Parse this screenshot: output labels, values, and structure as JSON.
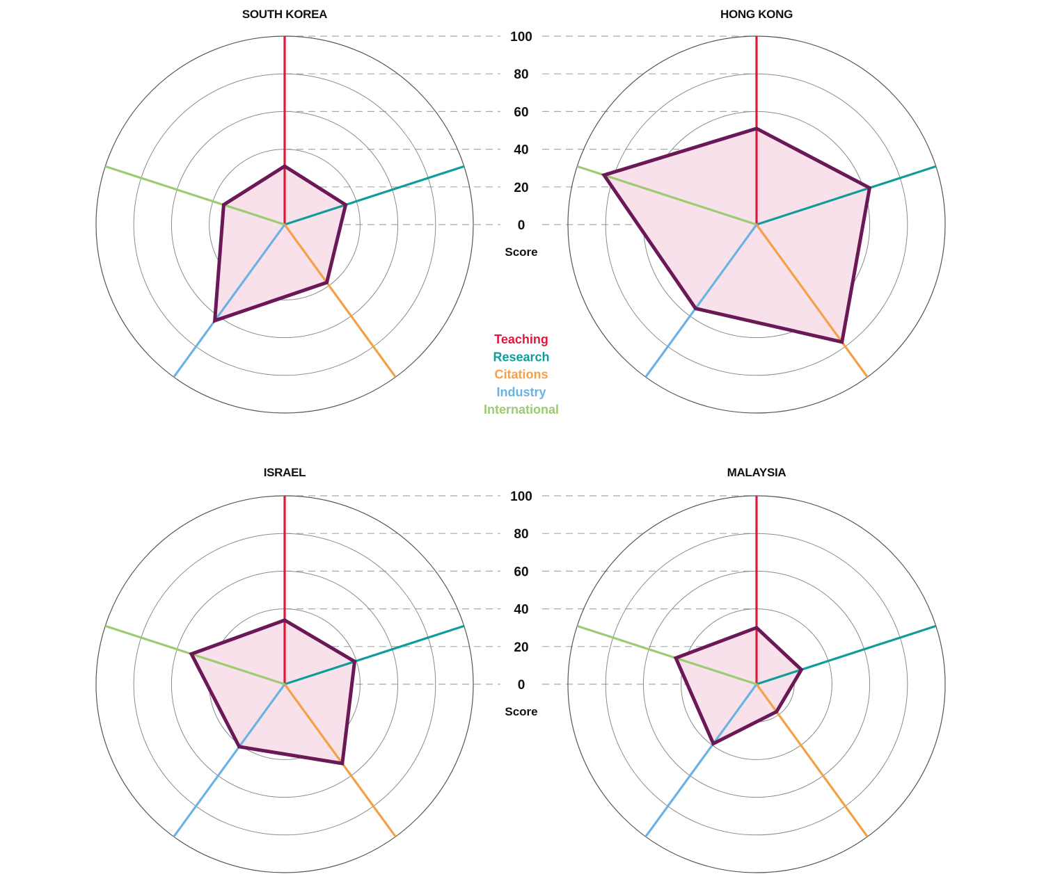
{
  "chart_data": [
    {
      "type": "radar",
      "title": "SOUTH KOREA",
      "axes": [
        "Teaching",
        "Research",
        "Citations",
        "Industry",
        "International"
      ],
      "values": [
        31,
        34,
        38,
        63,
        34
      ],
      "rlim": [
        0,
        100
      ],
      "rticks": [
        0,
        20,
        40,
        60,
        80,
        100
      ]
    },
    {
      "type": "radar",
      "title": "HONG KONG",
      "axes": [
        "Teaching",
        "Research",
        "Citations",
        "Industry",
        "International"
      ],
      "values": [
        51,
        63,
        77,
        55,
        85
      ],
      "rlim": [
        0,
        100
      ],
      "rticks": [
        0,
        20,
        40,
        60,
        80,
        100
      ]
    },
    {
      "type": "radar",
      "title": "ISRAEL",
      "axes": [
        "Teaching",
        "Research",
        "Citations",
        "Industry",
        "International"
      ],
      "values": [
        34,
        39,
        52,
        41,
        52
      ],
      "rlim": [
        0,
        100
      ],
      "rticks": [
        0,
        20,
        40,
        60,
        80,
        100
      ]
    },
    {
      "type": "radar",
      "title": "MALAYSIA",
      "axes": [
        "Teaching",
        "Research",
        "Citations",
        "Industry",
        "International"
      ],
      "values": [
        30,
        25,
        18,
        39,
        45
      ],
      "rlim": [
        0,
        100
      ],
      "rticks": [
        0,
        20,
        40,
        60,
        80,
        100
      ]
    }
  ],
  "scale": {
    "ticks": [
      "100",
      "80",
      "60",
      "40",
      "20",
      "0"
    ],
    "label": "Score"
  },
  "legend": {
    "placement": "center",
    "items": [
      {
        "label": "Teaching",
        "color": "#e0193c"
      },
      {
        "label": "Research",
        "color": "#109c99"
      },
      {
        "label": "Citations",
        "color": "#f4a046"
      },
      {
        "label": "Industry",
        "color": "#6cb2e3"
      },
      {
        "label": "International",
        "color": "#9ccb72"
      }
    ]
  },
  "style": {
    "polygon_stroke": "#6a1856",
    "polygon_fill": "#f8e1ea",
    "ring_color": "#8a8a8a",
    "outer_ring_color": "#555555",
    "dash_color": "#a8a8a8"
  }
}
